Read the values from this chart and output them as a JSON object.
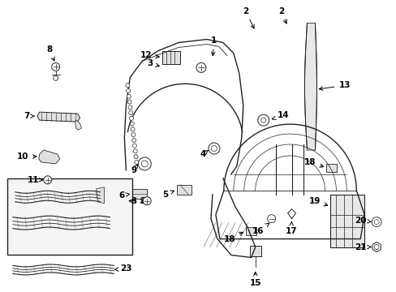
{
  "background_color": "#ffffff",
  "line_color": "#222222",
  "fig_width": 4.89,
  "fig_height": 3.6,
  "dpi": 100,
  "label_fontsize": 7.5,
  "small_parts": {
    "bolt_r": 0.008,
    "hex_r": 0.01
  }
}
